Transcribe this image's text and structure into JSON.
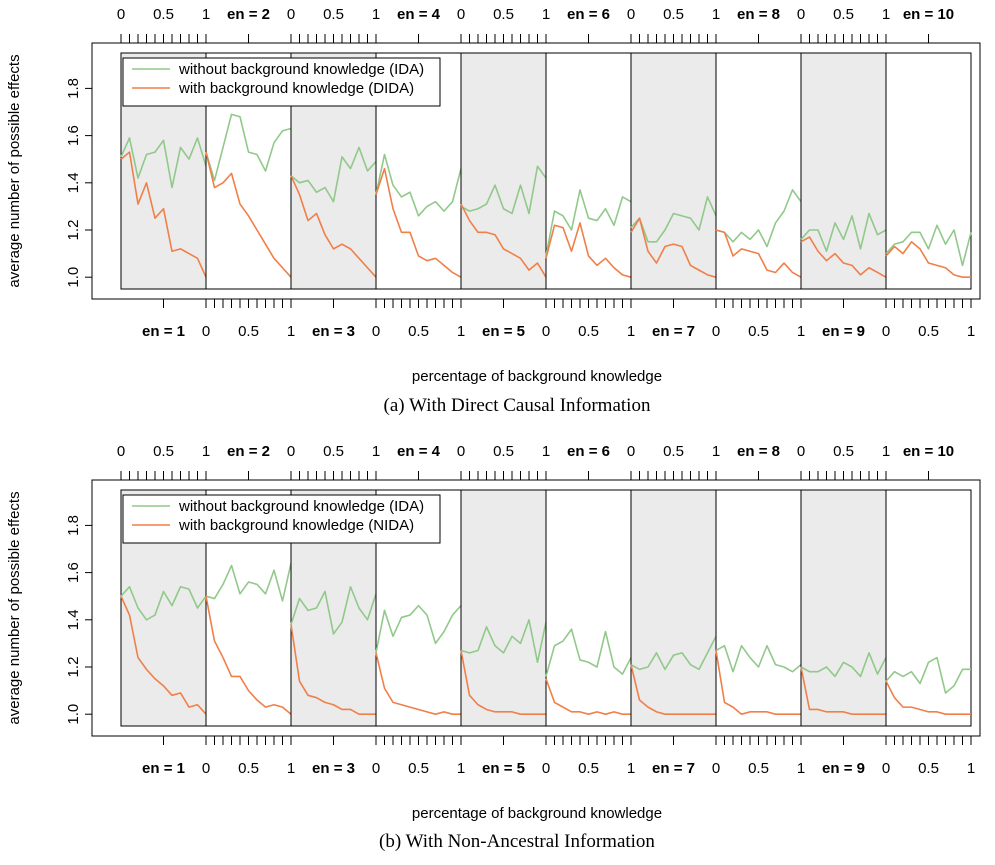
{
  "chart_data": [
    {
      "type": "line",
      "caption": "(a) With Direct Causal Information",
      "xlabel": "percentage of background knowledge",
      "ylabel": "average number of possible effects",
      "ylim": [
        0.95,
        1.95
      ],
      "yticks": [
        "1.0",
        "1.2",
        "1.4",
        "1.6",
        "1.8"
      ],
      "x": [
        0,
        0.1,
        0.2,
        0.3,
        0.4,
        0.5,
        0.6,
        0.7,
        0.8,
        0.9,
        1
      ],
      "x_tick_labels": [
        "0",
        "0.5",
        "1"
      ],
      "legend": {
        "position": "top-left",
        "entries": [
          "without background knowledge (IDA)",
          "with background knowledge (DIDA)"
        ]
      },
      "series_colors": {
        "IDA": "#91c98a",
        "DIDA": "#f07f48"
      },
      "panel_bg": [
        "#ebebeb",
        "#ffffff"
      ],
      "panels": [
        {
          "label": "en = 1",
          "IDA": [
            1.51,
            1.59,
            1.42,
            1.52,
            1.53,
            1.58,
            1.38,
            1.55,
            1.5,
            1.59,
            1.47
          ],
          "DIDA": [
            1.5,
            1.53,
            1.31,
            1.4,
            1.25,
            1.29,
            1.11,
            1.12,
            1.1,
            1.08,
            1.0
          ]
        },
        {
          "label": "en = 2",
          "IDA": [
            1.53,
            1.41,
            1.55,
            1.69,
            1.68,
            1.53,
            1.52,
            1.45,
            1.57,
            1.62,
            1.63
          ],
          "DIDA": [
            1.53,
            1.38,
            1.4,
            1.44,
            1.31,
            1.26,
            1.2,
            1.14,
            1.08,
            1.04,
            1.0
          ]
        },
        {
          "label": "en = 3",
          "IDA": [
            1.43,
            1.4,
            1.41,
            1.36,
            1.38,
            1.32,
            1.51,
            1.46,
            1.55,
            1.45,
            1.49
          ],
          "DIDA": [
            1.43,
            1.35,
            1.24,
            1.27,
            1.18,
            1.12,
            1.14,
            1.12,
            1.08,
            1.04,
            1.0
          ]
        },
        {
          "label": "en = 4",
          "IDA": [
            1.35,
            1.52,
            1.39,
            1.34,
            1.36,
            1.26,
            1.3,
            1.32,
            1.28,
            1.32,
            1.46
          ],
          "DIDA": [
            1.35,
            1.46,
            1.29,
            1.19,
            1.19,
            1.09,
            1.07,
            1.08,
            1.05,
            1.02,
            1.0
          ]
        },
        {
          "label": "en = 5",
          "IDA": [
            1.3,
            1.28,
            1.29,
            1.31,
            1.39,
            1.29,
            1.27,
            1.39,
            1.27,
            1.47,
            1.42
          ],
          "DIDA": [
            1.31,
            1.24,
            1.19,
            1.19,
            1.18,
            1.12,
            1.1,
            1.08,
            1.03,
            1.06,
            1.0
          ]
        },
        {
          "label": "en = 6",
          "IDA": [
            1.09,
            1.28,
            1.26,
            1.2,
            1.37,
            1.25,
            1.24,
            1.29,
            1.22,
            1.34,
            1.32
          ],
          "DIDA": [
            1.08,
            1.22,
            1.21,
            1.11,
            1.23,
            1.09,
            1.05,
            1.08,
            1.04,
            1.01,
            1.0
          ]
        },
        {
          "label": "en = 7",
          "IDA": [
            1.21,
            1.25,
            1.15,
            1.15,
            1.2,
            1.27,
            1.26,
            1.25,
            1.2,
            1.34,
            1.26
          ],
          "DIDA": [
            1.19,
            1.25,
            1.11,
            1.06,
            1.13,
            1.14,
            1.13,
            1.05,
            1.03,
            1.01,
            1.0
          ]
        },
        {
          "label": "en = 8",
          "IDA": [
            1.2,
            1.19,
            1.15,
            1.19,
            1.16,
            1.2,
            1.13,
            1.23,
            1.28,
            1.37,
            1.32
          ],
          "DIDA": [
            1.2,
            1.19,
            1.09,
            1.12,
            1.11,
            1.1,
            1.03,
            1.02,
            1.06,
            1.02,
            1.0
          ]
        },
        {
          "label": "en = 9",
          "IDA": [
            1.16,
            1.2,
            1.2,
            1.11,
            1.23,
            1.16,
            1.26,
            1.12,
            1.27,
            1.18,
            1.2
          ],
          "DIDA": [
            1.15,
            1.17,
            1.11,
            1.07,
            1.1,
            1.06,
            1.05,
            1.01,
            1.04,
            1.02,
            1.0
          ]
        },
        {
          "label": "en = 10",
          "IDA": [
            1.1,
            1.14,
            1.15,
            1.19,
            1.19,
            1.12,
            1.22,
            1.14,
            1.2,
            1.05,
            1.19
          ],
          "DIDA": [
            1.09,
            1.13,
            1.1,
            1.15,
            1.12,
            1.06,
            1.05,
            1.04,
            1.01,
            1.0,
            1.0
          ]
        }
      ]
    },
    {
      "type": "line",
      "caption": "(b) With Non-Ancestral Information",
      "xlabel": "percentage of background knowledge",
      "ylabel": "average number of possible effects",
      "ylim": [
        0.95,
        1.95
      ],
      "yticks": [
        "1.0",
        "1.2",
        "1.4",
        "1.6",
        "1.8"
      ],
      "x": [
        0,
        0.1,
        0.2,
        0.3,
        0.4,
        0.5,
        0.6,
        0.7,
        0.8,
        0.9,
        1
      ],
      "x_tick_labels": [
        "0",
        "0.5",
        "1"
      ],
      "legend": {
        "position": "top-left",
        "entries": [
          "without background knowledge (IDA)",
          "with background knowledge (NIDA)"
        ]
      },
      "series_colors": {
        "IDA": "#91c98a",
        "NIDA": "#f07f48"
      },
      "panel_bg": [
        "#ebebeb",
        "#ffffff"
      ],
      "panels": [
        {
          "label": "en = 1",
          "IDA": [
            1.5,
            1.54,
            1.45,
            1.4,
            1.42,
            1.52,
            1.46,
            1.54,
            1.53,
            1.45,
            1.5
          ],
          "NIDA": [
            1.5,
            1.42,
            1.24,
            1.19,
            1.15,
            1.12,
            1.08,
            1.09,
            1.03,
            1.04,
            1.0
          ]
        },
        {
          "label": "en = 2",
          "IDA": [
            1.5,
            1.49,
            1.55,
            1.63,
            1.51,
            1.56,
            1.55,
            1.51,
            1.61,
            1.48,
            1.64
          ],
          "NIDA": [
            1.5,
            1.31,
            1.24,
            1.16,
            1.16,
            1.1,
            1.06,
            1.03,
            1.04,
            1.03,
            1.0
          ]
        },
        {
          "label": "en = 3",
          "IDA": [
            1.38,
            1.49,
            1.44,
            1.45,
            1.52,
            1.34,
            1.39,
            1.54,
            1.45,
            1.4,
            1.51
          ],
          "NIDA": [
            1.38,
            1.14,
            1.08,
            1.07,
            1.05,
            1.04,
            1.02,
            1.02,
            1.0,
            1.0,
            1.0
          ]
        },
        {
          "label": "en = 4",
          "IDA": [
            1.26,
            1.44,
            1.33,
            1.41,
            1.42,
            1.46,
            1.42,
            1.3,
            1.35,
            1.42,
            1.46
          ],
          "NIDA": [
            1.26,
            1.11,
            1.05,
            1.04,
            1.03,
            1.02,
            1.01,
            1.0,
            1.01,
            1.0,
            1.0
          ]
        },
        {
          "label": "en = 5",
          "IDA": [
            1.27,
            1.26,
            1.27,
            1.37,
            1.29,
            1.26,
            1.33,
            1.3,
            1.4,
            1.22,
            1.39
          ],
          "NIDA": [
            1.27,
            1.08,
            1.04,
            1.02,
            1.01,
            1.01,
            1.01,
            1.0,
            1.0,
            1.0,
            1.0
          ]
        },
        {
          "label": "en = 6",
          "IDA": [
            1.16,
            1.29,
            1.31,
            1.36,
            1.23,
            1.22,
            1.2,
            1.35,
            1.2,
            1.17,
            1.24
          ],
          "NIDA": [
            1.15,
            1.05,
            1.03,
            1.01,
            1.01,
            1.0,
            1.01,
            1.0,
            1.01,
            1.0,
            1.0
          ]
        },
        {
          "label": "en = 7",
          "IDA": [
            1.21,
            1.19,
            1.2,
            1.26,
            1.19,
            1.25,
            1.26,
            1.21,
            1.19,
            1.26,
            1.33
          ],
          "NIDA": [
            1.21,
            1.06,
            1.03,
            1.01,
            1.0,
            1.0,
            1.0,
            1.0,
            1.0,
            1.0,
            1.0
          ]
        },
        {
          "label": "en = 8",
          "IDA": [
            1.27,
            1.29,
            1.18,
            1.29,
            1.24,
            1.2,
            1.29,
            1.21,
            1.2,
            1.18,
            1.21
          ],
          "NIDA": [
            1.27,
            1.05,
            1.03,
            1.0,
            1.01,
            1.01,
            1.01,
            1.0,
            1.0,
            1.0,
            1.0
          ]
        },
        {
          "label": "en = 9",
          "IDA": [
            1.2,
            1.18,
            1.18,
            1.2,
            1.16,
            1.22,
            1.2,
            1.16,
            1.26,
            1.17,
            1.24
          ],
          "NIDA": [
            1.2,
            1.02,
            1.02,
            1.01,
            1.01,
            1.01,
            1.0,
            1.0,
            1.0,
            1.0,
            1.0
          ]
        },
        {
          "label": "en = 10",
          "IDA": [
            1.14,
            1.18,
            1.16,
            1.18,
            1.13,
            1.22,
            1.24,
            1.09,
            1.12,
            1.19,
            1.19
          ],
          "NIDA": [
            1.14,
            1.07,
            1.03,
            1.03,
            1.02,
            1.01,
            1.01,
            1.0,
            1.0,
            1.0,
            1.0
          ]
        }
      ]
    }
  ]
}
